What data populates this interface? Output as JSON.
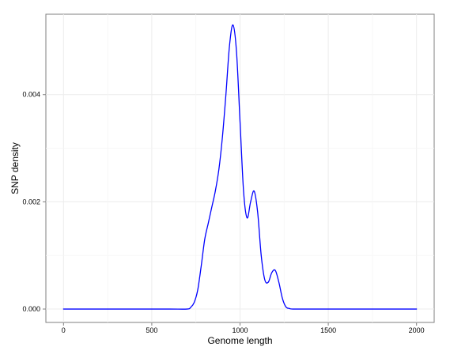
{
  "chart_data": {
    "type": "line",
    "xlabel": "Genome length",
    "ylabel": "SNP density",
    "xlim": [
      -100,
      2100
    ],
    "ylim": [
      -0.00025,
      0.0055
    ],
    "xticks": [
      0,
      500,
      1000,
      1500,
      2000
    ],
    "xtick_labels": [
      "0",
      "500",
      "1000",
      "1500",
      "2000"
    ],
    "yticks": [
      0.0,
      0.002,
      0.004
    ],
    "ytick_labels": [
      "0.000",
      "0.002",
      "0.004"
    ],
    "grid": true,
    "legend": "none",
    "series": [
      {
        "color": "#0000ff",
        "x": [
          0,
          200,
          400,
          600,
          700,
          720,
          740,
          760,
          780,
          800,
          820,
          840,
          860,
          880,
          900,
          920,
          940,
          960,
          980,
          1000,
          1020,
          1040,
          1060,
          1080,
          1100,
          1120,
          1140,
          1160,
          1180,
          1200,
          1220,
          1240,
          1260,
          1280,
          1300,
          1400,
          1600,
          1800,
          2000
        ],
        "y": [
          0,
          0,
          0,
          0,
          0,
          3e-05,
          0.00012,
          0.00035,
          0.0008,
          0.0013,
          0.0016,
          0.0019,
          0.0022,
          0.0026,
          0.0032,
          0.004,
          0.0049,
          0.0053,
          0.0048,
          0.0035,
          0.0022,
          0.0017,
          0.002,
          0.0022,
          0.0018,
          0.001,
          0.00055,
          0.0005,
          0.00068,
          0.00072,
          0.0005,
          0.0002,
          4e-05,
          1e-05,
          0,
          0,
          0,
          0,
          0
        ]
      }
    ]
  }
}
